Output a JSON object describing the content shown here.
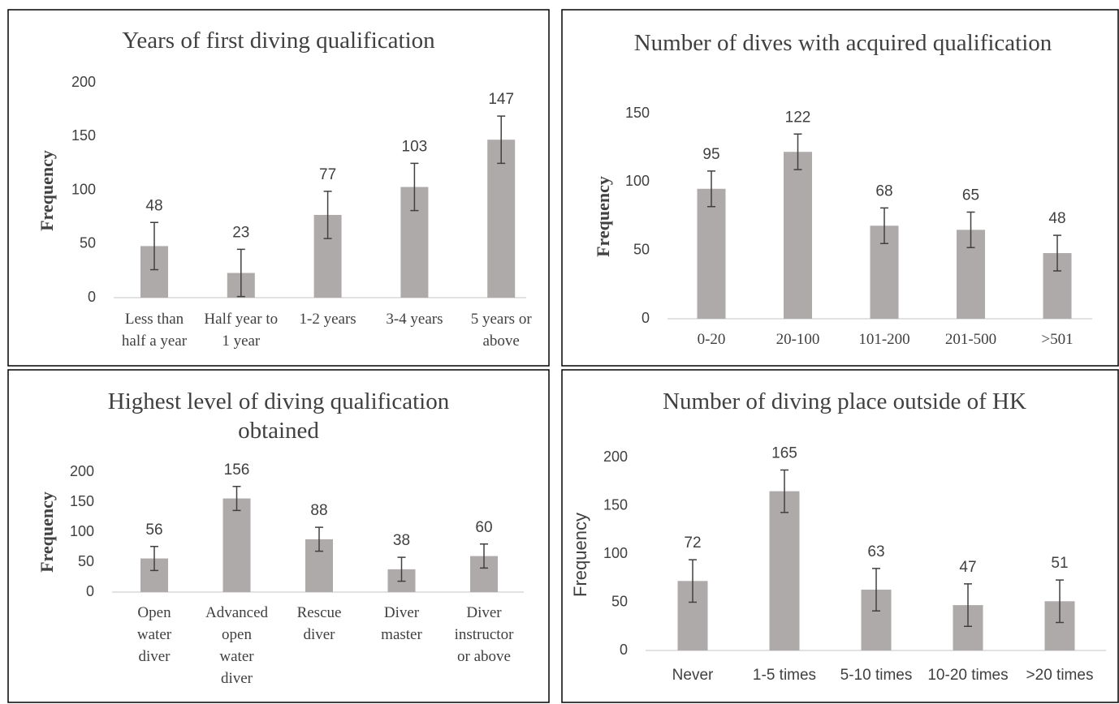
{
  "chart_data": [
    {
      "type": "bar",
      "title": "Years of first diving qualification",
      "y_label": "Frequency",
      "categories": [
        "Less than half a year",
        "Half year to 1 year",
        "1-2 years",
        "3-4 years",
        "5 years or above"
      ],
      "values": [
        48,
        23,
        77,
        103,
        147
      ],
      "errors": [
        22,
        22,
        22,
        22,
        22
      ],
      "color": "#aeaaaa",
      "ylim": [
        0,
        200
      ],
      "yticks": [
        0,
        50,
        100,
        150,
        200
      ],
      "grid": false
    },
    {
      "type": "bar",
      "title": "Number of dives with acquired qualification",
      "y_label": "Frequency",
      "categories": [
        "0-20",
        "20-100",
        "101-200",
        "201-500",
        ">501"
      ],
      "values": [
        95,
        122,
        68,
        65,
        48
      ],
      "errors": [
        13,
        13,
        13,
        13,
        13
      ],
      "color": "#aeaaaa",
      "ylim": [
        0,
        150
      ],
      "yticks": [
        0,
        50,
        100,
        150
      ],
      "grid": false
    },
    {
      "type": "bar",
      "title": "Highest level of diving qualification obtained",
      "y_label": "Frequency",
      "categories": [
        "Open water diver",
        "Advanced open water diver",
        "Rescue diver",
        "Diver master",
        "Diver instructor or above"
      ],
      "values": [
        56,
        156,
        88,
        38,
        60
      ],
      "errors": [
        20,
        20,
        20,
        20,
        20
      ],
      "color": "#aeaaaa",
      "ylim": [
        0,
        200
      ],
      "yticks": [
        0,
        50,
        100,
        150,
        200
      ],
      "grid": false
    },
    {
      "type": "bar",
      "title": "Number of diving place outside of HK",
      "y_label": "Frequency",
      "categories": [
        "Never",
        "1-5 times",
        "5-10 times",
        "10-20 times",
        ">20 times"
      ],
      "values": [
        72,
        165,
        63,
        47,
        51
      ],
      "errors": [
        22,
        22,
        22,
        22,
        22
      ],
      "color": "#aeaaaa",
      "ylim": [
        0,
        200
      ],
      "yticks": [
        0,
        50,
        100,
        150,
        200
      ],
      "grid": false
    }
  ]
}
